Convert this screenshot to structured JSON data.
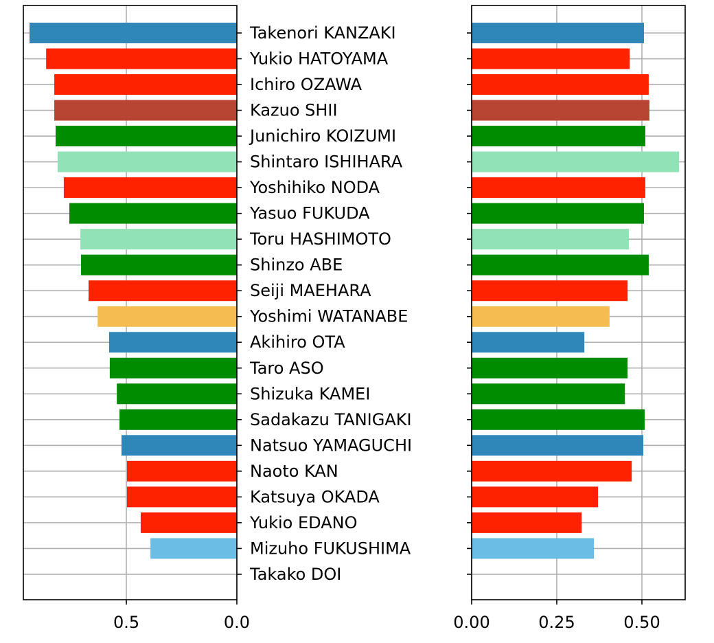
{
  "chart_data": [
    {
      "type": "bar",
      "x_inverted": true,
      "grid": true,
      "categories": [
        "Takenori KANZAKI",
        "Yukio HATOYAMA",
        "Ichiro OZAWA",
        "Kazuo SHII",
        "Junichiro KOIZUMI",
        "Shintaro ISHIHARA",
        "Yoshihiko NODA",
        "Yasuo FUKUDA",
        "Toru HASHIMOTO",
        "Shinzo ABE",
        "Seiji MAEHARA",
        "Yoshimi WATANABE",
        "Akihiro OTA",
        "Taro ASO",
        "Shizuka KAMEI",
        "Sadakazu TANIGAKI",
        "Natsuo YAMAGUCHI",
        "Naoto KAN",
        "Katsuya OKADA",
        "Yukio EDANO",
        "Mizuho FUKUSHIMA",
        "Takako DOI"
      ],
      "values": [
        0.938,
        0.863,
        0.826,
        0.826,
        0.82,
        0.811,
        0.783,
        0.758,
        0.708,
        0.705,
        0.671,
        0.63,
        0.578,
        0.575,
        0.543,
        0.531,
        0.522,
        0.497,
        0.497,
        0.435,
        0.391,
        0
      ],
      "colors": [
        "#2e86b9",
        "#ff2200",
        "#ff2200",
        "#b84433",
        "#008c00",
        "#92e2b8",
        "#ff2200",
        "#008c00",
        "#92e2b8",
        "#008c00",
        "#ff2200",
        "#f5bc52",
        "#2e86b9",
        "#008c00",
        "#008c00",
        "#008c00",
        "#2e86b9",
        "#ff2200",
        "#ff2200",
        "#ff2200",
        "#6cbde6",
        "#6cbde6"
      ],
      "xlim": [
        0,
        0.966
      ],
      "xticks": [
        {
          "value": 0,
          "label": "0.0"
        },
        0.5
      ]
    },
    {
      "type": "bar",
      "x_inverted": false,
      "grid": true,
      "values": [
        0.506,
        0.464,
        0.52,
        0.522,
        0.51,
        0.609,
        0.51,
        0.506,
        0.462,
        0.52,
        0.458,
        0.405,
        0.331,
        0.458,
        0.45,
        0.508,
        0.504,
        0.47,
        0.371,
        0.323,
        0.359,
        0
      ],
      "colors": [
        "#2e86b9",
        "#ff2200",
        "#ff2200",
        "#b84433",
        "#008c00",
        "#92e2b8",
        "#ff2200",
        "#008c00",
        "#92e2b8",
        "#008c00",
        "#ff2200",
        "#f5bc52",
        "#2e86b9",
        "#008c00",
        "#008c00",
        "#008c00",
        "#2e86b9",
        "#ff2200",
        "#ff2200",
        "#ff2200",
        "#6cbde6",
        "#6cbde6"
      ],
      "xlim": [
        0,
        0.627
      ],
      "xticks": [
        {
          "value": 0,
          "label": "0.00"
        },
        0.25,
        {
          "value": 0.5,
          "label": "0.50"
        }
      ]
    }
  ]
}
